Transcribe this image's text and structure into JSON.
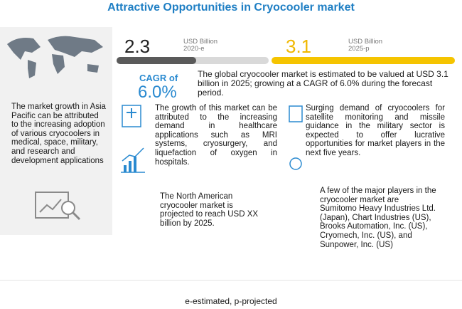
{
  "title": "Attractive Opportunities in Cryocooler market",
  "stats": [
    {
      "value": "2.3",
      "unit": "USD Billion",
      "year": "2020-e"
    },
    {
      "value": "3.1",
      "unit": "USD Billion",
      "year": "2025-p"
    }
  ],
  "cagr": {
    "label": "CAGR of",
    "value": "6.0%"
  },
  "summary": "The global cryocooler market is estimated to be valued at USD 3.1 billion in 2025; growing at a CAGR of 6.0% during the forecast period.",
  "left_panel": "The market growth in Asia Pacific can be attributed to the increasing adoption of various cryocoolers in medical, space, military, and research and development applications",
  "points": [
    "The growth of this market can be attributed to the increasing demand in healthcare applications such as MRI systems, cryosurgery, and liquefaction of oxygen in hospitals.",
    "The North American cryocooler market is projected to reach USD XX billion by 2025.",
    "Surging demand of cryocoolers for satellite monitoring and missile guidance in the military sector is expected to offer lucrative opportunities for market players in the next five years.",
    "A few of the major players in the cryocooler market are Sumitomo Heavy Industries Ltd. (Japan), Chart Industries (US), Brooks Automation, Inc. (US), Cryomech, Inc. (US), and Sunpower, Inc. (US)"
  ],
  "footnote": "e-estimated, p-projected"
}
